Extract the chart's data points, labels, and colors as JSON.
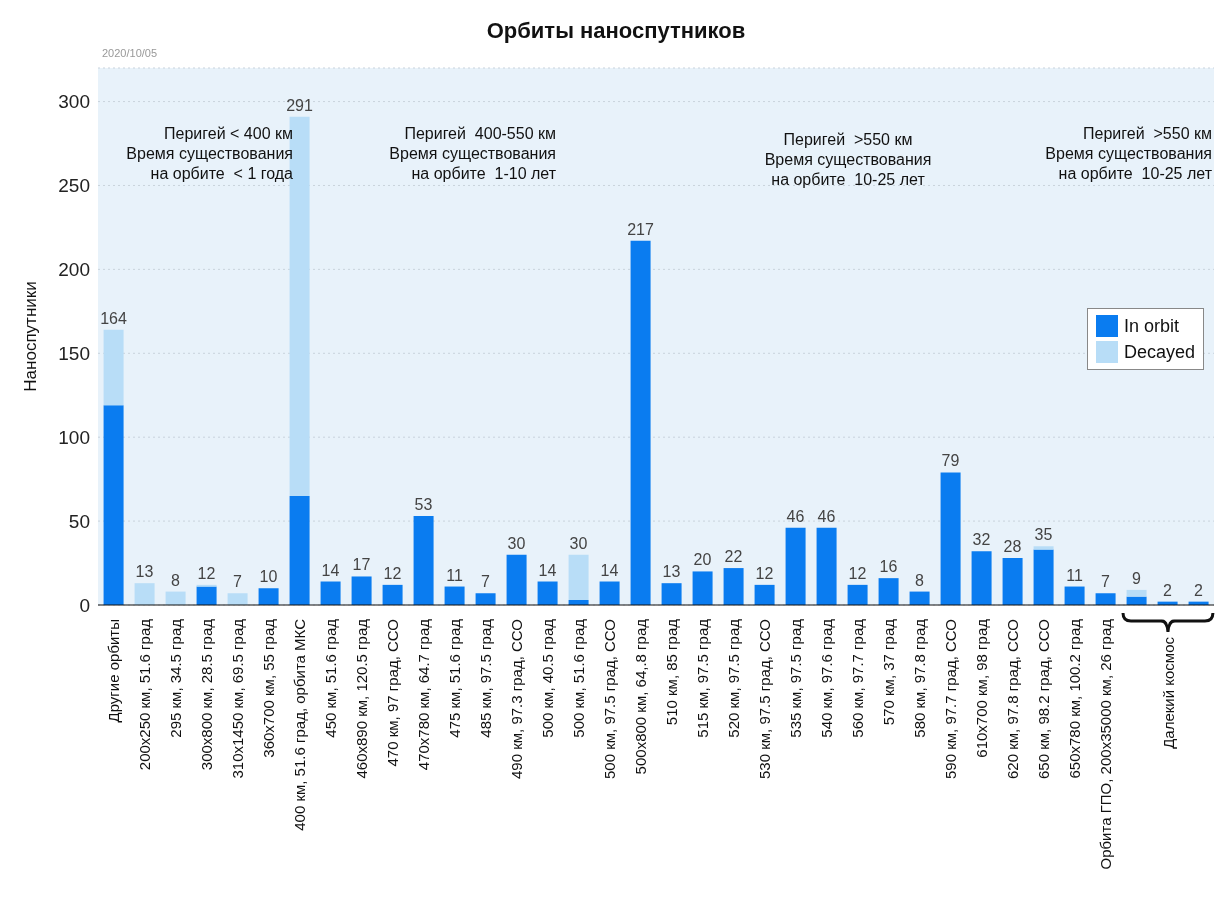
{
  "chart_data": {
    "type": "bar",
    "title": "Орбиты наноспутников",
    "ylabel": "Наноспутники",
    "annotations": [
      "2020/10/05",
      "Перигей < 400 км\nВремя существования\nна орбите  < 1 года",
      "Перигей  400-550 км\nВремя существования\nна орбите  1-10 лет",
      "Перигей  >550 км\nВремя существования\nна орбите  10-25 лет",
      "Перигей  >550 км\nВремя существования\nна орбите  10-25 лет",
      "Далекий космос"
    ],
    "categories": [
      "Другие орбиты",
      "200x250 км, 51.6 град",
      "295 км, 34.5 град",
      "300x800 км, 28.5 град",
      "310x1450 км, 69.5 град",
      "360x700 км, 55 град",
      "400 км, 51.6 град, орбита МКС",
      "450 км, 51.6 град",
      "460x890 км, 120.5 град",
      "470 км, 97 град, ССО",
      "470x780 км, 64.7 град",
      "475 км, 51.6 град",
      "485 км, 97.5 град",
      "490 км, 97.3 град, ССО",
      "500 км, 40.5 град",
      "500 км, 51.6 град",
      "500 км, 97.5 град, ССО",
      "500x800 км, 64,.8 град",
      "510 км, 85 град",
      "515 км, 97.5 град",
      "520 км, 97.5 град",
      "530 км, 97.5 град, ССО",
      "535 км, 97.5 град",
      "540 км, 97.6 град",
      "560 км, 97.7 град",
      "570 км, 37 град",
      "580 км, 97.8 град",
      "590 км, 97.7 град, ССО",
      "610x700 км, 98 град",
      "620 км, 97.8 град, ССО",
      "650 км, 98.2 град, ССО",
      "650x780 км, 100.2 град",
      "Орбита ГПО, 200x35000 км, 26 град",
      null,
      null,
      null
    ],
    "series": [
      {
        "name": "In orbit",
        "color": "#0a7cf0",
        "values": [
          119,
          0,
          0,
          11,
          0,
          10,
          65,
          14,
          17,
          12,
          53,
          11,
          7,
          30,
          14,
          3,
          14,
          217,
          13,
          20,
          22,
          12,
          46,
          46,
          12,
          16,
          8,
          79,
          32,
          28,
          33,
          11,
          7,
          5,
          2,
          2
        ]
      },
      {
        "name": "Decayed",
        "color": "#b8ddf7",
        "values": [
          45,
          13,
          8,
          1,
          7,
          0,
          226,
          0,
          0,
          0,
          0,
          0,
          0,
          0,
          0,
          27,
          0,
          0,
          0,
          0,
          0,
          0,
          0,
          0,
          0,
          0,
          0,
          0,
          0,
          0,
          2,
          0,
          0,
          4,
          0,
          0
        ]
      }
    ],
    "stacked": true,
    "totals": [
      "164",
      "13",
      "8",
      "12",
      "7",
      "10",
      "291",
      "14",
      "17",
      "12",
      "53",
      "11",
      "7",
      "30",
      "14",
      "30",
      "14",
      "217",
      "13",
      "20",
      "22",
      "12",
      "46",
      "46",
      "12",
      "16",
      "8",
      "79",
      "32",
      "28",
      "35",
      "11",
      "7",
      "9",
      "2",
      "2"
    ],
    "ylim": [
      0,
      320
    ],
    "yticks": [
      0,
      50,
      100,
      150,
      200,
      250,
      300
    ],
    "grid": "y",
    "legend": "right"
  }
}
